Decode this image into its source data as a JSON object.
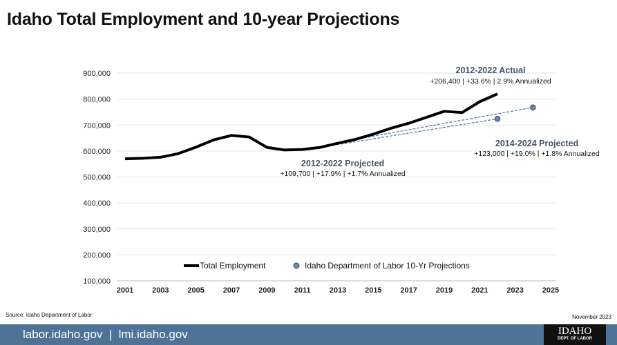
{
  "title": "Idaho Total Employment and 10-year Projections",
  "source": "Source: Idaho Department of Labor",
  "date": "November 2023",
  "footer": {
    "links": "labor.idaho.gov  |  lmi.idaho.gov",
    "logo_line1": "IDAHO",
    "logo_line2": "DEPT. OF LABOR"
  },
  "colors": {
    "line": "#000000",
    "projection": "#5b7ba8",
    "annotation": "#44546a",
    "footer": "#4e7396"
  },
  "chart_data": {
    "type": "line",
    "ylim": [
      100000,
      900000
    ],
    "yticks": [
      "100,000",
      "200,000",
      "300,000",
      "400,000",
      "500,000",
      "600,000",
      "700,000",
      "800,000",
      "900,000"
    ],
    "ytick_values": [
      100000,
      200000,
      300000,
      400000,
      500000,
      600000,
      700000,
      800000,
      900000
    ],
    "xlim": [
      2001,
      2025
    ],
    "xticks": [
      "2001",
      "2003",
      "2005",
      "2007",
      "2009",
      "2011",
      "2013",
      "2015",
      "2017",
      "2019",
      "2021",
      "2023",
      "2025"
    ],
    "grid": true,
    "legend_placement": "bottom",
    "series": [
      {
        "name": "Total Employment",
        "x": [
          2001,
          2002,
          2003,
          2004,
          2005,
          2006,
          2007,
          2008,
          2009,
          2010,
          2011,
          2012,
          2013,
          2014,
          2015,
          2016,
          2017,
          2018,
          2019,
          2020,
          2021,
          2022
        ],
        "y": [
          570000,
          572000,
          576000,
          590000,
          615000,
          643000,
          660000,
          654000,
          614000,
          604000,
          606000,
          614000,
          630000,
          645000,
          665000,
          688000,
          707000,
          730000,
          753000,
          748000,
          790000,
          820000
        ]
      },
      {
        "name": "Idaho Department of Labor 10-Yr Projections",
        "segments": [
          {
            "x": [
              2012,
              2022
            ],
            "y": [
              614000,
              724000
            ]
          },
          {
            "x": [
              2014,
              2024
            ],
            "y": [
              645000,
              768000
            ]
          }
        ]
      }
    ],
    "annotations": [
      {
        "title": "2012-2022 Actual",
        "text": "+206,400 | +33.6% | 2.9% Annualized"
      },
      {
        "title": "2012-2022 Projected",
        "text": "+109,700 | +17.9% | +1.7% Annualized"
      },
      {
        "title": "2014-2024 Projected",
        "text": "+123,000 | +19.0% | +1.8% Annualized"
      }
    ]
  }
}
